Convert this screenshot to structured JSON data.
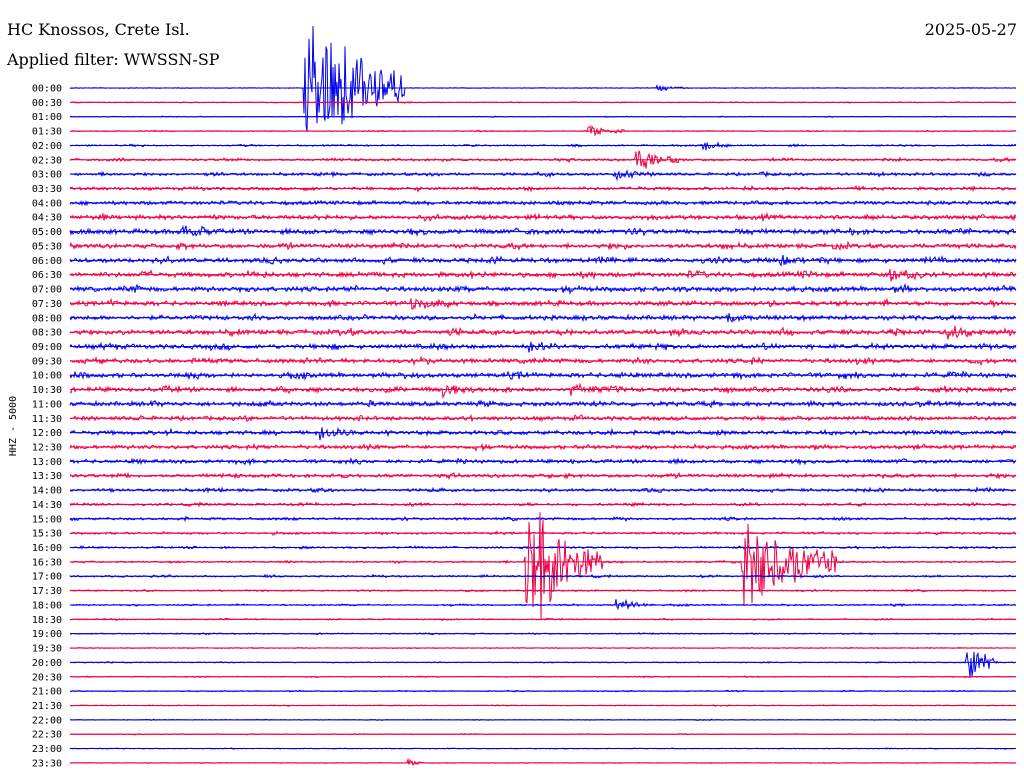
{
  "header": {
    "station": "HC Knossos, Crete Isl.",
    "filter": "Applied filter: WWSSN-SP",
    "date": "2025-05-27"
  },
  "colors": {
    "trace_a": "#0000ee",
    "trace_b": "#ee0044",
    "background": "#ffffff",
    "text": "#000000"
  },
  "chart_data": {
    "type": "line",
    "title": "HC Knossos, Crete Isl.",
    "subtitle": "Applied filter: WWSSN-SP",
    "ylabel": "HHZ - 5000",
    "date": "2025-05-27",
    "grid": false,
    "legend": "none",
    "series_colors": [
      "#0000ee",
      "#ee0044"
    ],
    "rows": [
      "00:00",
      "00:30",
      "01:00",
      "01:30",
      "02:00",
      "02:30",
      "03:00",
      "03:30",
      "04:00",
      "04:30",
      "05:00",
      "05:30",
      "06:00",
      "06:30",
      "07:00",
      "07:30",
      "08:00",
      "08:30",
      "09:00",
      "09:30",
      "10:00",
      "10:30",
      "11:00",
      "11:30",
      "12:00",
      "12:30",
      "13:00",
      "13:30",
      "14:00",
      "14:30",
      "15:00",
      "15:30",
      "16:00",
      "16:30",
      "17:00",
      "17:30",
      "18:00",
      "18:30",
      "19:00",
      "19:30",
      "20:00",
      "20:30",
      "21:00",
      "21:30",
      "22:00",
      "22:30",
      "23:00",
      "23:30"
    ],
    "row_noise": [
      0.3,
      0.35,
      0.3,
      0.4,
      0.6,
      1.0,
      1.2,
      1.3,
      1.6,
      1.8,
      2.0,
      1.8,
      1.9,
      2.0,
      2.0,
      1.9,
      1.9,
      2.0,
      1.9,
      1.8,
      1.9,
      1.9,
      1.8,
      1.7,
      1.7,
      1.6,
      1.5,
      1.4,
      1.2,
      1.0,
      1.0,
      0.9,
      0.8,
      0.7,
      0.7,
      0.6,
      0.6,
      0.5,
      0.5,
      0.4,
      0.4,
      0.4,
      0.4,
      0.35,
      0.3,
      0.3,
      0.3,
      0.3
    ],
    "events": [
      {
        "row": 0,
        "minute": 7.4,
        "amp": 80,
        "decay": 2.2,
        "len": 3.2
      },
      {
        "row": 0,
        "minute": 18.6,
        "amp": 4,
        "decay": 0.5,
        "len": 1.0
      },
      {
        "row": 3,
        "minute": 16.4,
        "amp": 9,
        "decay": 0.6,
        "len": 1.2
      },
      {
        "row": 4,
        "minute": 20.0,
        "amp": 9,
        "decay": 0.4,
        "len": 1.0
      },
      {
        "row": 5,
        "minute": 17.9,
        "amp": 14,
        "decay": 0.7,
        "len": 1.6
      },
      {
        "row": 6,
        "minute": 17.2,
        "amp": 9,
        "decay": 0.5,
        "len": 1.0
      },
      {
        "row": 10,
        "minute": 3.5,
        "amp": 7,
        "decay": 0.5,
        "len": 1.0
      },
      {
        "row": 12,
        "minute": 22.5,
        "amp": 6,
        "decay": 0.4,
        "len": 0.8
      },
      {
        "row": 13,
        "minute": 26.0,
        "amp": 8,
        "decay": 0.5,
        "len": 1.0
      },
      {
        "row": 15,
        "minute": 10.8,
        "amp": 6,
        "decay": 0.8,
        "len": 1.6
      },
      {
        "row": 16,
        "minute": 20.8,
        "amp": 8,
        "decay": 0.4,
        "len": 0.8
      },
      {
        "row": 17,
        "minute": 27.8,
        "amp": 8,
        "decay": 0.6,
        "len": 1.2
      },
      {
        "row": 18,
        "minute": 14.5,
        "amp": 9,
        "decay": 0.4,
        "len": 0.8
      },
      {
        "row": 21,
        "minute": 11.8,
        "amp": 10,
        "decay": 0.5,
        "len": 1.0
      },
      {
        "row": 21,
        "minute": 15.8,
        "amp": 7,
        "decay": 0.6,
        "len": 1.2
      },
      {
        "row": 24,
        "minute": 7.9,
        "amp": 8,
        "decay": 0.6,
        "len": 1.2
      },
      {
        "row": 33,
        "minute": 14.4,
        "amp": 95,
        "decay": 1.2,
        "len": 2.5
      },
      {
        "row": 33,
        "minute": 21.3,
        "amp": 60,
        "decay": 1.8,
        "len": 3.0
      },
      {
        "row": 36,
        "minute": 17.3,
        "amp": 9,
        "decay": 0.6,
        "len": 1.2
      },
      {
        "row": 40,
        "minute": 28.4,
        "amp": 30,
        "decay": 0.5,
        "len": 1.0
      },
      {
        "row": 47,
        "minute": 10.7,
        "amp": 6,
        "decay": 0.3,
        "len": 0.5
      }
    ]
  }
}
